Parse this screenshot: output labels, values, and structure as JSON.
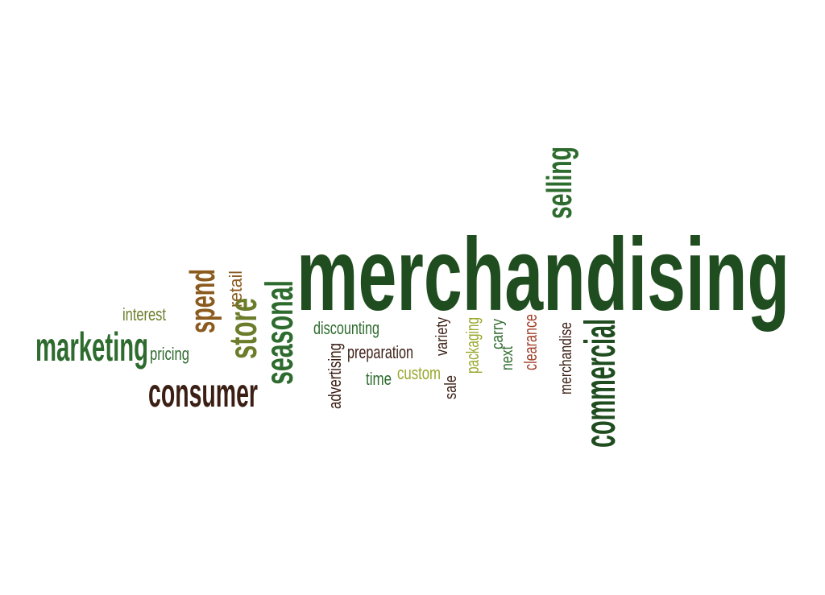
{
  "colors": {
    "background": "#ffffff",
    "dark_green": "#1f4d1f",
    "green": "#2e6b2e",
    "olive": "#6b7d2a",
    "lime": "#9aa82c",
    "brown": "#8a5a1e",
    "dark_brown": "#3b1f14",
    "rust": "#a0412a"
  },
  "words": {
    "merchandising": "merchandising",
    "selling": "selling",
    "commercial": "commercial",
    "marketing": "marketing",
    "consumer": "consumer",
    "spend": "spend",
    "store": "store",
    "retail": "retail",
    "seasonal": "seasonal",
    "interest": "interest",
    "pricing": "pricing",
    "discounting": "discounting",
    "advertising": "advertising",
    "preparation": "preparation",
    "time": "time",
    "custom": "custom",
    "variety": "variety",
    "sale": "sale",
    "packaging": "packaging",
    "carry": "carry",
    "next": "next",
    "clearance": "clearance",
    "merchandise": "merchandise"
  }
}
